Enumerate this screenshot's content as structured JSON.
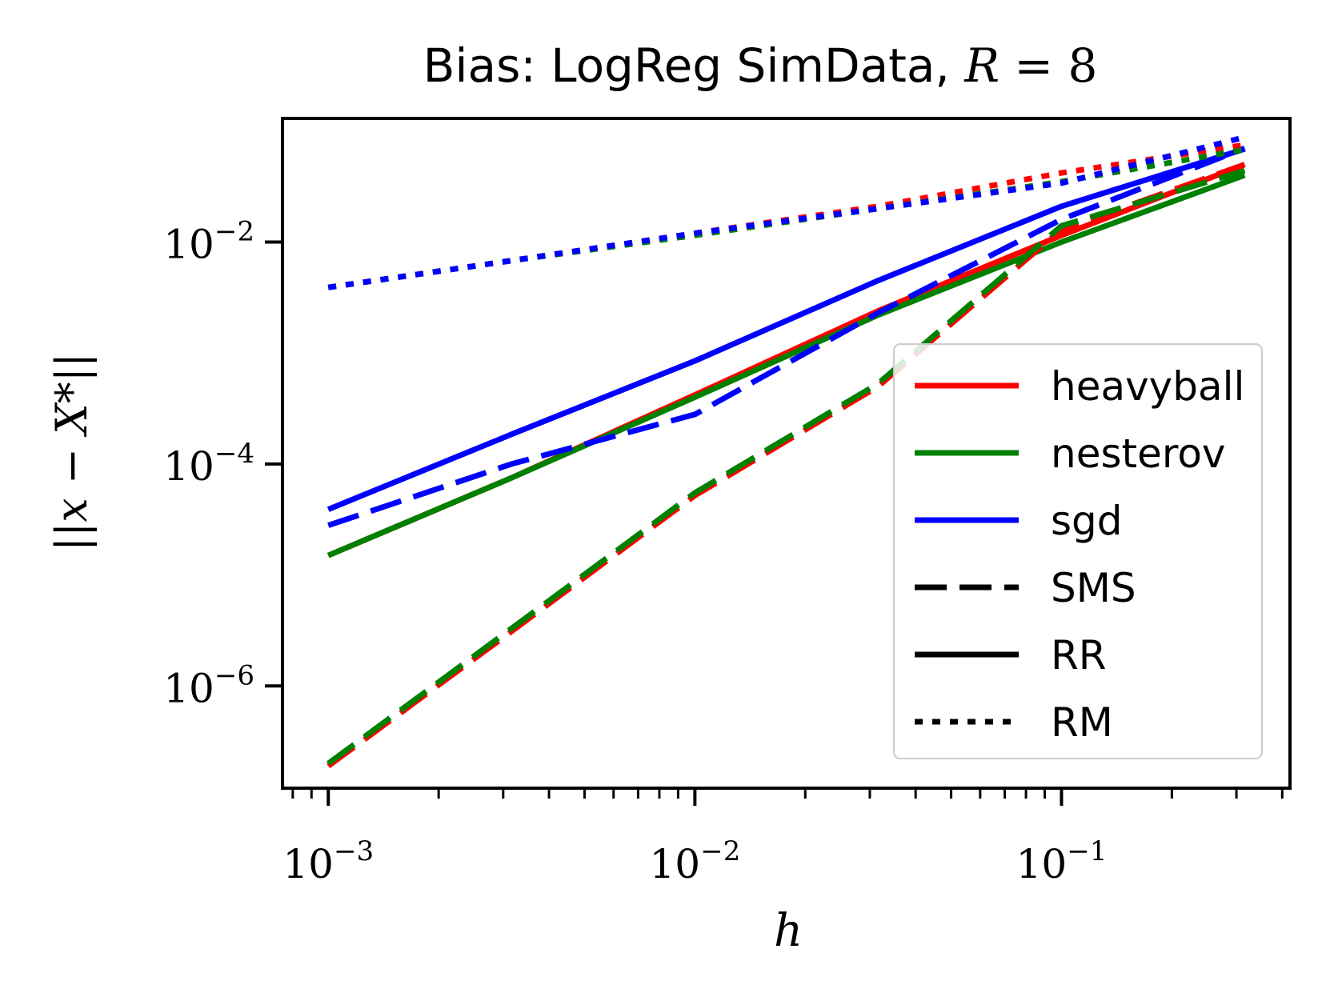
{
  "chart_data": {
    "type": "line",
    "title": "Bias: LogReg SimData, R = 8",
    "title_parts": {
      "prefix": "Bias: LogReg SimData, ",
      "var": "R",
      "eq": " = 8"
    },
    "xlabel": "h",
    "ylabel": "||x − X*||",
    "xscale": "log",
    "yscale": "log",
    "xlim": [
      0.00075,
      0.42
    ],
    "ylim": [
      1.2e-07,
      0.13
    ],
    "x_ticks": [
      {
        "base": "10",
        "exp": "−3",
        "value": 0.001
      },
      {
        "base": "10",
        "exp": "−2",
        "value": 0.01
      },
      {
        "base": "10",
        "exp": "−1",
        "value": 0.1
      }
    ],
    "y_ticks": [
      {
        "base": "10",
        "exp": "−2",
        "value": 0.01
      },
      {
        "base": "10",
        "exp": "−4",
        "value": 0.0001
      },
      {
        "base": "10",
        "exp": "−6",
        "value": 1e-06
      }
    ],
    "x": [
      0.001,
      0.00316,
      0.01,
      0.0316,
      0.1,
      0.316
    ],
    "series": [
      {
        "name": "heavyball RR",
        "method": "heavyball",
        "scheme": "RR",
        "color": "#ff0000",
        "values": [
          1.5e-05,
          7.5e-05,
          0.00042,
          0.0024,
          0.0115,
          0.05
        ]
      },
      {
        "name": "nesterov RR",
        "method": "nesterov",
        "scheme": "RR",
        "color": "#008000",
        "values": [
          1.5e-05,
          7.5e-05,
          0.0004,
          0.0022,
          0.01,
          0.04
        ]
      },
      {
        "name": "sgd RR",
        "method": "sgd",
        "scheme": "RR",
        "color": "#0000ff",
        "values": [
          3.9e-05,
          0.000185,
          0.00085,
          0.0045,
          0.021,
          0.069
        ]
      },
      {
        "name": "heavyball SMS",
        "method": "heavyball",
        "scheme": "SMS",
        "color": "#ff0000",
        "values": [
          1.9e-07,
          3.1e-06,
          5.2e-05,
          0.0005,
          0.013,
          0.05
        ]
      },
      {
        "name": "nesterov SMS",
        "method": "nesterov",
        "scheme": "SMS",
        "color": "#008000",
        "values": [
          2e-07,
          3.3e-06,
          5.5e-05,
          0.00053,
          0.014,
          0.044
        ]
      },
      {
        "name": "sgd SMS",
        "method": "sgd",
        "scheme": "SMS",
        "color": "#0000ff",
        "values": [
          2.8e-05,
          0.0001,
          0.00028,
          0.0023,
          0.016,
          0.07
        ]
      },
      {
        "name": "heavyball RM",
        "method": "heavyball",
        "scheme": "RM",
        "color": "#ff0000",
        "values": [
          0.0039,
          0.0068,
          0.012,
          0.021,
          0.042,
          0.075
        ]
      },
      {
        "name": "nesterov RM",
        "method": "nesterov",
        "scheme": "RM",
        "color": "#008000",
        "values": [
          0.0039,
          0.0068,
          0.0115,
          0.02,
          0.035,
          0.068
        ]
      },
      {
        "name": "sgd RM",
        "method": "sgd",
        "scheme": "RM",
        "color": "#0000ff",
        "values": [
          0.0039,
          0.0068,
          0.012,
          0.02,
          0.034,
          0.088
        ]
      }
    ],
    "legend": {
      "placement": "lower-right",
      "entries": [
        {
          "label": "heavyball",
          "color": "#ff0000",
          "style": "solid"
        },
        {
          "label": "nesterov",
          "color": "#008000",
          "style": "solid"
        },
        {
          "label": "sgd",
          "color": "#0000ff",
          "style": "solid"
        },
        {
          "label": "SMS",
          "color": "#000000",
          "style": "dashed"
        },
        {
          "label": "RR",
          "color": "#000000",
          "style": "solid"
        },
        {
          "label": "RM",
          "color": "#000000",
          "style": "dotted"
        }
      ]
    },
    "grid": false
  }
}
